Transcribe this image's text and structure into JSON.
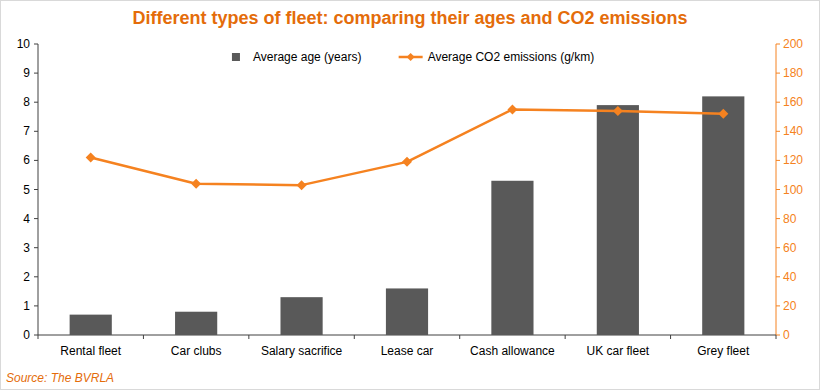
{
  "chart_data": {
    "type": "bar",
    "title": "Different types of fleet: comparing their ages and CO2 emissions",
    "source": "Source: The BVRLA",
    "categories": [
      "Rental fleet",
      "Car clubs",
      "Salary sacrifice",
      "Lease car",
      "Cash allowance",
      "UK car fleet",
      "Grey fleet"
    ],
    "series": [
      {
        "name": "Average age (years)",
        "type": "bar",
        "color": "#595959",
        "values": [
          0.7,
          0.8,
          1.3,
          1.6,
          5.3,
          7.9,
          8.2
        ]
      },
      {
        "name": "Average CO2 emissions (g/km)",
        "type": "line",
        "color": "#f58220",
        "axis": "y2",
        "marker": "diamond",
        "values": [
          122,
          104,
          103,
          119,
          155,
          154,
          152
        ]
      }
    ],
    "ylim": [
      0,
      10
    ],
    "yticks": [
      0,
      1,
      2,
      3,
      4,
      5,
      6,
      7,
      8,
      9,
      10
    ],
    "y2lim": [
      0,
      200
    ],
    "y2ticks": [
      0,
      20,
      40,
      60,
      80,
      100,
      120,
      140,
      160,
      180,
      200
    ],
    "grid": false,
    "legend": "top"
  }
}
